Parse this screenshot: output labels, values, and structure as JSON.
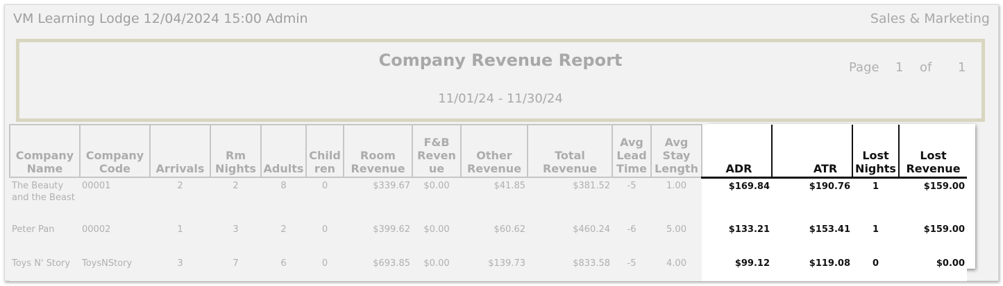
{
  "header": {
    "left": "VM Learning Lodge 12/04/2024 15:00  Admin",
    "right": "Sales & Marketing"
  },
  "banner": {
    "title": "Company Revenue Report",
    "date_range": "11/01/24 - 11/30/24",
    "page_label": "Page",
    "page_number": "1",
    "of_label": "of",
    "page_total": "1"
  },
  "columns": [
    {
      "label": "Company Name"
    },
    {
      "label": "Company Code"
    },
    {
      "label": "Arrivals"
    },
    {
      "label": "Rm Nights"
    },
    {
      "label": "Adults"
    },
    {
      "label": "Child ren"
    },
    {
      "label": "Room Revenue"
    },
    {
      "label": "F&B Reven ue"
    },
    {
      "label": "Other Revenue"
    },
    {
      "label": "Total Revenue"
    },
    {
      "label": "Avg Lead Time"
    },
    {
      "label": "Avg Stay Length"
    },
    {
      "label": "ADR"
    },
    {
      "label": "ATR"
    },
    {
      "label": "Lost Nights"
    },
    {
      "label": "Lost Revenue"
    }
  ],
  "rows": [
    {
      "company_name": "The Beauty and the Beast",
      "company_code": "00001",
      "arrivals": "2",
      "rm_nights": "2",
      "adults": "8",
      "children": "0",
      "room_revenue": "$339.67",
      "fb_revenue": "$0.00",
      "other_revenue": "$41.85",
      "total_revenue": "$381.52",
      "avg_lead_time": "-5",
      "avg_stay_length": "1.00",
      "adr": "$169.84",
      "atr": "$190.76",
      "lost_nights": "1",
      "lost_revenue": "$159.00"
    },
    {
      "company_name": "Peter Pan",
      "company_code": "00002",
      "arrivals": "1",
      "rm_nights": "3",
      "adults": "2",
      "children": "0",
      "room_revenue": "$399.62",
      "fb_revenue": "$0.00",
      "other_revenue": "$60.62",
      "total_revenue": "$460.24",
      "avg_lead_time": "-6",
      "avg_stay_length": "5.00",
      "adr": "$133.21",
      "atr": "$153.41",
      "lost_nights": "1",
      "lost_revenue": "$159.00"
    },
    {
      "company_name": "Toys N' Story",
      "company_code": "ToysNStory",
      "arrivals": "3",
      "rm_nights": "7",
      "adults": "6",
      "children": "0",
      "room_revenue": "$693.85",
      "fb_revenue": "$0.00",
      "other_revenue": "$139.73",
      "total_revenue": "$833.58",
      "avg_lead_time": "-5",
      "avg_stay_length": "4.00",
      "adr": "$99.12",
      "atr": "$119.08",
      "lost_nights": "0",
      "lost_revenue": "$0.00"
    }
  ]
}
